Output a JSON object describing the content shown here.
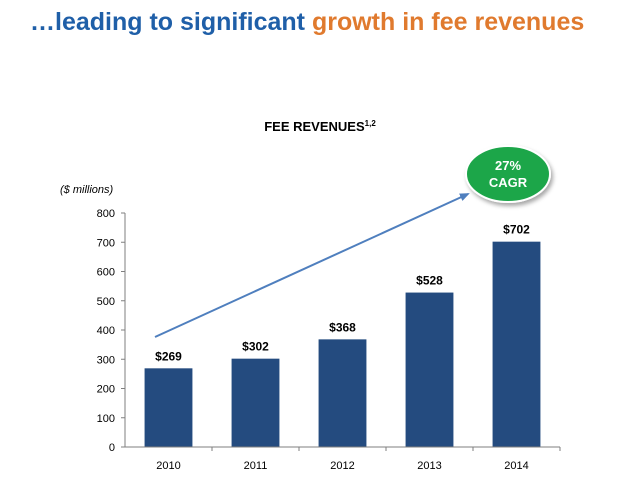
{
  "slide": {
    "title_part1": "…leading to significant ",
    "title_part2": "growth in fee revenues"
  },
  "colors": {
    "title_blue": "#1f5fa8",
    "title_orange": "#e07a2e",
    "bar": "#244b7f",
    "arrow": "#4f7fbe",
    "badge": "#1aa64a"
  },
  "chart_data": {
    "type": "bar",
    "title": "FEE REVENUES",
    "title_superscript": "1,2",
    "ylabel": "($ millions)",
    "xlabel": "",
    "categories": [
      "2010",
      "2011",
      "2012",
      "2013",
      "2014"
    ],
    "values": [
      269,
      302,
      368,
      528,
      702
    ],
    "value_labels": [
      "$269",
      "$302",
      "$368",
      "$528",
      "$702"
    ],
    "ylim": [
      0,
      800
    ],
    "yticks": [
      0,
      100,
      200,
      300,
      400,
      500,
      600,
      700,
      800
    ],
    "grid": false,
    "annotation": {
      "line1": "27%",
      "line2": "CAGR",
      "shape": "oval badge with trend arrow"
    }
  }
}
